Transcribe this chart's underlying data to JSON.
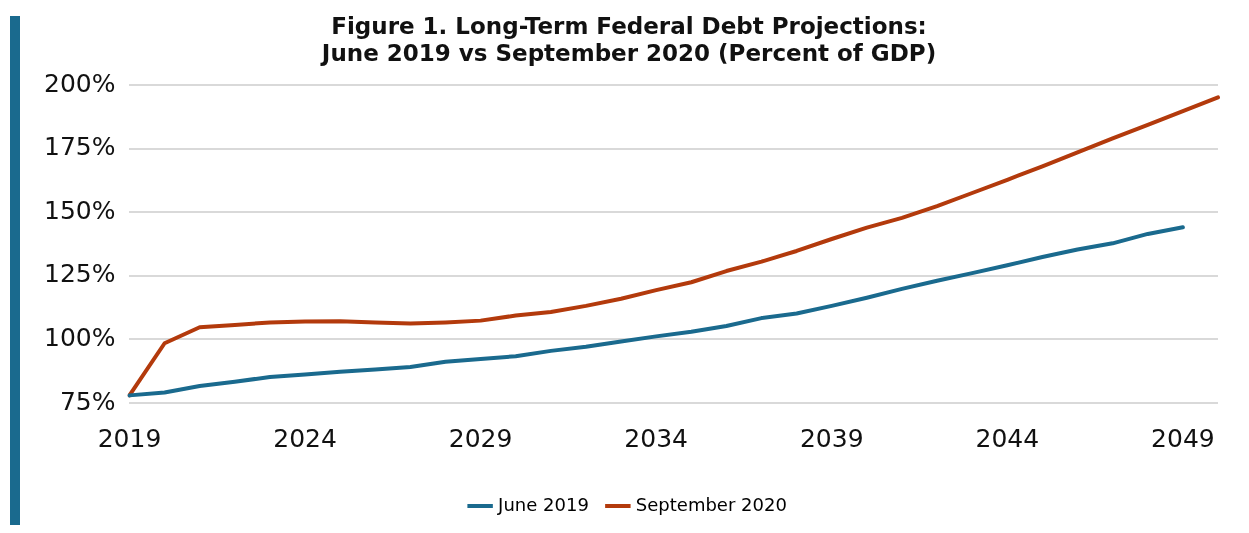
{
  "chart_data": {
    "type": "line",
    "title": [
      "Figure 1. Long-Term Federal Debt Projections:",
      "June 2019 vs September 2020 (Percent of GDP)"
    ],
    "categories": [
      "2019",
      null,
      null,
      null,
      null,
      "2024",
      null,
      null,
      null,
      null,
      "2029",
      null,
      null,
      null,
      null,
      "2034",
      null,
      null,
      null,
      null,
      "2039",
      null,
      null,
      null,
      null,
      "2044",
      null,
      null,
      null,
      null,
      "2049",
      null
    ],
    "series": [
      {
        "name": "June 2019",
        "color": "#1a6a8e",
        "values": [
          78.0,
          79.1,
          81.7,
          83.4,
          85.2,
          86.2,
          87.3,
          88.2,
          89.2,
          91.2,
          92.3,
          93.4,
          95.5,
          97.1,
          99.2,
          101.2,
          103.0,
          105.3,
          108.4,
          110.2,
          113.2,
          116.4,
          119.9,
          123.1,
          126.1,
          129.2,
          132.4,
          135.4,
          137.8,
          141.5,
          144.1,
          null
        ]
      },
      {
        "name": "September 2020",
        "color": "#b33a0c",
        "values": [
          78.0,
          98.5,
          104.8,
          105.7,
          106.7,
          107.1,
          107.2,
          106.7,
          106.3,
          106.7,
          107.4,
          109.4,
          110.8,
          113.2,
          116.0,
          119.4,
          122.5,
          126.9,
          130.6,
          134.8,
          139.5,
          144.0,
          147.8,
          152.4,
          157.6,
          162.8,
          168.1,
          173.6,
          179.1,
          184.4,
          189.8,
          195.2
        ]
      }
    ],
    "ylim": [
      75,
      200
    ],
    "yticks": [
      {
        "value": 75,
        "label": "75%"
      },
      {
        "value": 100,
        "label": "100%"
      },
      {
        "value": 125,
        "label": "125%"
      },
      {
        "value": 150,
        "label": "150%"
      },
      {
        "value": 175,
        "label": "175%"
      },
      {
        "value": 200,
        "label": "200%"
      }
    ],
    "grid": "y",
    "legend": "bottom",
    "marker": "none",
    "line_style": "solid"
  }
}
